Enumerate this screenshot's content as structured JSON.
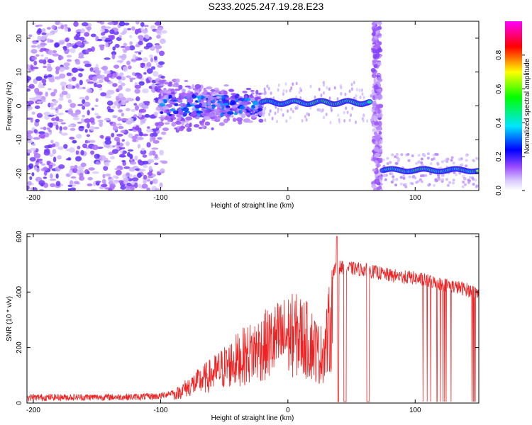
{
  "title": "S233.2025.247.19.28.E23",
  "colors": {
    "snr_line": "#ee2222",
    "frame": "#000000"
  },
  "chart_data": [
    {
      "type": "heatmap",
      "xlabel": "Height of straight line (km)",
      "ylabel": "Frequency (Hz)",
      "xlim": [
        -205,
        150
      ],
      "ylim": [
        -25,
        25
      ],
      "xticks": [
        -200,
        -100,
        0,
        100
      ],
      "yticks": [
        -20,
        -10,
        0,
        10,
        20
      ],
      "colorbar": {
        "label": "Normalized spectral amplitude",
        "range": [
          0,
          1
        ],
        "ticks": [
          "0.0",
          "0.2",
          "0.4",
          "0.6",
          "0.8"
        ],
        "tick_values": [
          0,
          0.2,
          0.4,
          0.6,
          0.8
        ],
        "colormap": [
          "#ffffff",
          "#e8d8ff",
          "#8a2be2",
          "#0000ff",
          "#00e5ff",
          "#00ff00",
          "#ffff00",
          "#ff0000",
          "#ff00ff"
        ]
      },
      "features": [
        {
          "name": "diffuse noise",
          "x_range": [
            -205,
            -100
          ],
          "freq_range": [
            -25,
            25
          ]
        },
        {
          "name": "onset scatter",
          "x_range": [
            -100,
            -30
          ],
          "center_freq": 0
        },
        {
          "name": "tone segment 1",
          "x_range": [
            -20,
            65
          ],
          "freq": 1
        },
        {
          "name": "vertical stripe",
          "x": 70
        },
        {
          "name": "tone segment 2",
          "x_range": [
            75,
            150
          ],
          "freq": -19
        }
      ]
    },
    {
      "type": "line",
      "xlabel": "Height of straight line (km)",
      "ylabel": "SNR (10 * v/v)",
      "xlim": [
        -205,
        150
      ],
      "ylim": [
        0,
        610
      ],
      "xticks": [
        -200,
        -100,
        0,
        100
      ],
      "yticks": [
        0,
        200,
        400,
        600
      ],
      "series": [
        {
          "name": "SNR",
          "profile_x": [
            -205,
            -120,
            -100,
            -90,
            -80,
            -60,
            -40,
            -20,
            -10,
            0,
            10,
            20,
            25,
            30,
            35,
            40,
            60,
            80,
            100,
            120,
            140,
            150
          ],
          "profile_y": [
            20,
            22,
            25,
            40,
            80,
            150,
            230,
            300,
            330,
            360,
            360,
            310,
            250,
            310,
            470,
            490,
            480,
            460,
            450,
            430,
            410,
            395
          ]
        }
      ]
    }
  ]
}
